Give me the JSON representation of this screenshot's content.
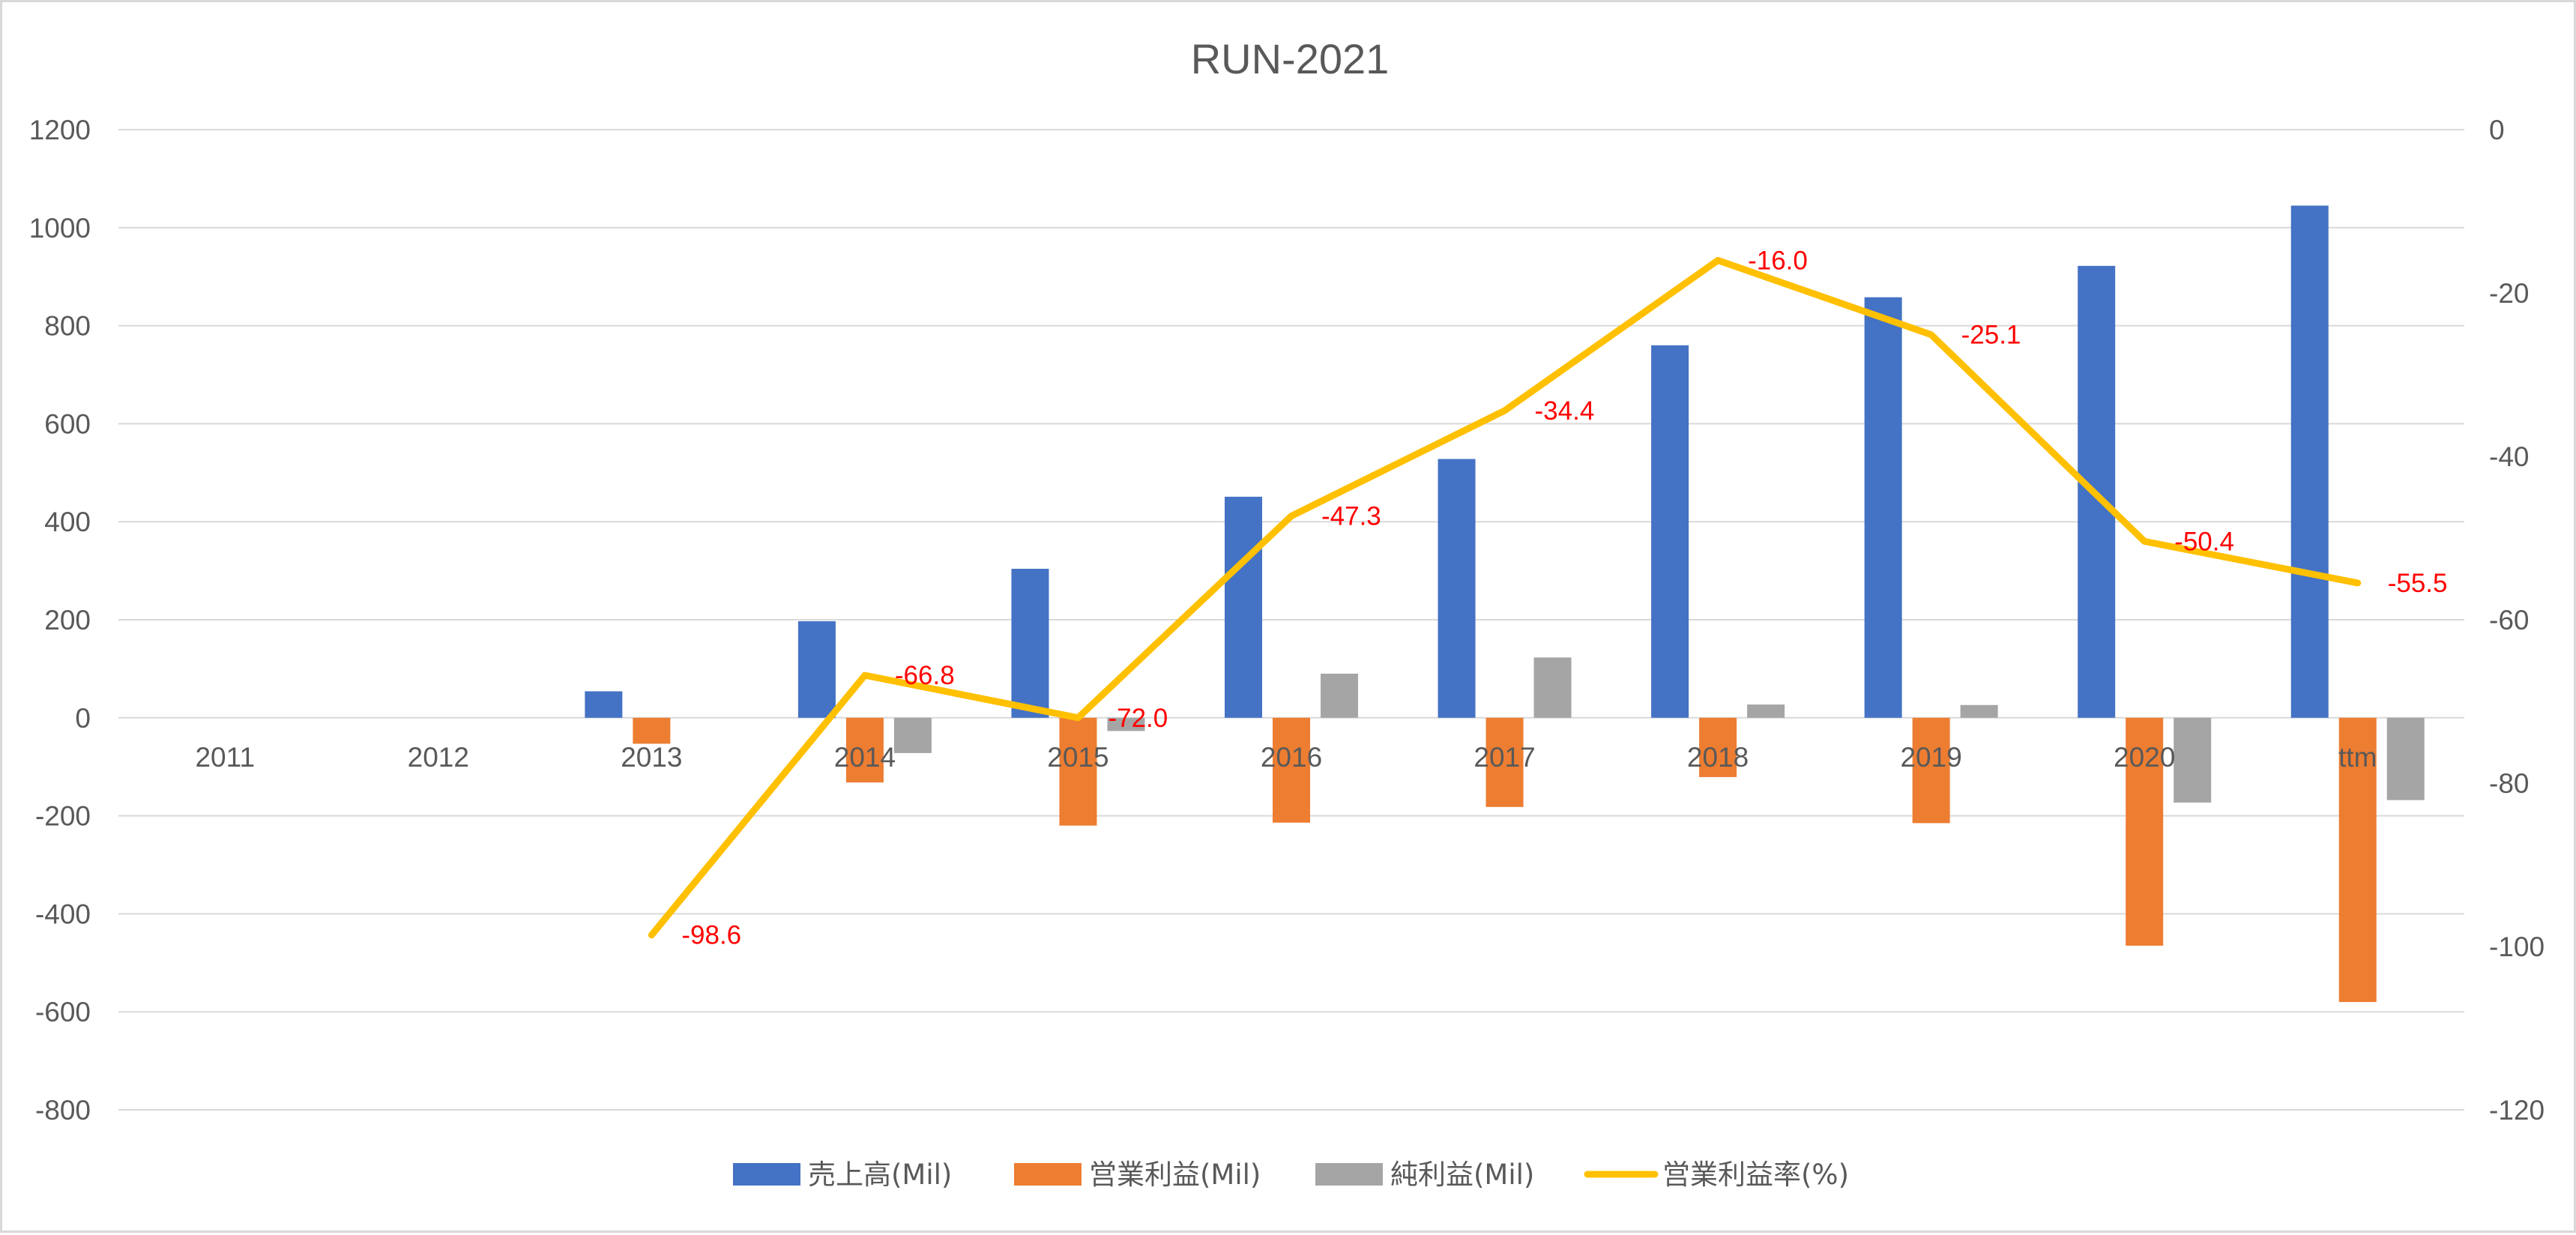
{
  "chart_data": {
    "type": "bar",
    "title": "RUN-2021",
    "categories": [
      "2011",
      "2012",
      "2013",
      "2014",
      "2015",
      "2016",
      "2017",
      "2018",
      "2019",
      "2020",
      "ttm"
    ],
    "series": [
      {
        "name": "売上高(Mil)",
        "type": "bar",
        "axis": "left",
        "color": "#4472c4",
        "values": [
          null,
          null,
          54,
          197,
          304,
          451,
          528,
          760,
          858,
          922,
          1045
        ]
      },
      {
        "name": "営業利益(Mil)",
        "type": "bar",
        "axis": "left",
        "color": "#ed7d31",
        "values": [
          null,
          null,
          -53,
          -132,
          -220,
          -214,
          -182,
          -121,
          -215,
          -465,
          -580
        ]
      },
      {
        "name": "純利益(Mil)",
        "type": "bar",
        "axis": "left",
        "color": "#a5a5a5",
        "values": [
          null,
          null,
          null,
          -72,
          -27,
          90,
          123,
          27,
          26,
          -173,
          -168
        ]
      },
      {
        "name": "営業利益率(%)",
        "type": "line",
        "axis": "right",
        "color": "#ffc000",
        "values": [
          null,
          null,
          -98.6,
          -66.8,
          -72.0,
          -47.3,
          -34.4,
          -16.0,
          -25.1,
          -50.4,
          -55.5
        ],
        "labels": [
          "",
          "",
          "-98.6",
          "-66.8",
          "-72.0",
          "-47.3",
          "-34.4",
          "-16.0",
          "-25.1",
          "-50.4",
          "-55.5"
        ]
      }
    ],
    "y_left": {
      "min": -800,
      "max": 1200,
      "ticks": [
        "1200",
        "1000",
        "800",
        "600",
        "400",
        "200",
        "0",
        "-200",
        "-400",
        "-600",
        "-800"
      ]
    },
    "y_right": {
      "min": -120,
      "max": 0,
      "ticks": [
        "0",
        "-20",
        "-40",
        "-60",
        "-80",
        "-100",
        "-120"
      ]
    },
    "grid": true,
    "legend": "bottom",
    "data_label_color": "#ff0000"
  }
}
